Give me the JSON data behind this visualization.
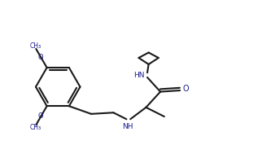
{
  "bg_color": "#ffffff",
  "line_color": "#1a1a1a",
  "text_color": "#1a1a8c",
  "bond_lw": 1.5,
  "figsize": [
    3.22,
    1.78
  ],
  "dpi": 100,
  "xlim": [
    0,
    10
  ],
  "ylim": [
    0,
    5.5
  ]
}
